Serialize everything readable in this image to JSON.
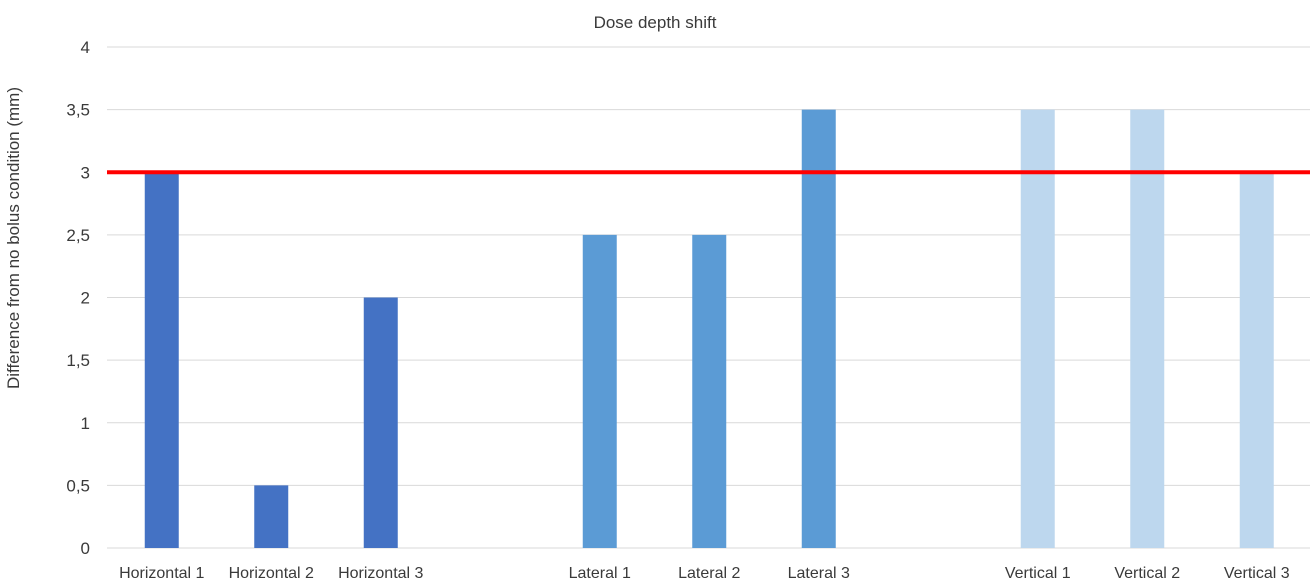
{
  "chart_data": {
    "type": "bar",
    "title": "Dose depth shift",
    "xlabel": "",
    "ylabel": "Difference from no bolus condition (mm)",
    "ylim": [
      0,
      4
    ],
    "yticks": [
      "0",
      "0,5",
      "1",
      "1,5",
      "2",
      "2,5",
      "3",
      "3,5",
      "4"
    ],
    "grid": true,
    "categories": [
      "Horizontal 1",
      "Horizontal 2",
      "Horizontal 3",
      "",
      "Lateral 1",
      "Lateral 2",
      "Lateral 3",
      "",
      "Vertical 1",
      "Vertical 2",
      "Vertical 3"
    ],
    "values": [
      3,
      0.5,
      2,
      null,
      2.5,
      2.5,
      3.5,
      null,
      3.5,
      3.5,
      3
    ],
    "bar_colors": [
      "#4472c4",
      "#4472c4",
      "#4472c4",
      null,
      "#5b9bd5",
      "#5b9bd5",
      "#5b9bd5",
      null,
      "#bdd7ee",
      "#bdd7ee",
      "#bdd7ee"
    ],
    "reference_line": {
      "value": 3,
      "color": "#ff0000"
    }
  }
}
